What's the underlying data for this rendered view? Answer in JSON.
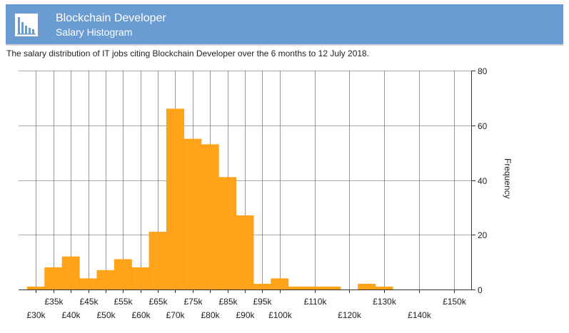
{
  "header": {
    "title": "Blockchain Developer",
    "subtitle": "Salary Histogram",
    "icon": "bar-chart-icon"
  },
  "description": "The salary distribution of IT jobs citing Blockchain Developer over the 6 months to 12 July 2018.",
  "colors": {
    "header_bg": "#6a9bd1",
    "bar": "#ffa31a",
    "bar_edge": "#ff9900",
    "grid": "#444444"
  },
  "chart_data": {
    "type": "bar",
    "title": "",
    "xlabel": "",
    "ylabel": "Frequency",
    "ylim": [
      0,
      80
    ],
    "y_ticks": [
      0,
      20,
      40,
      60,
      80
    ],
    "x_range": [
      25000,
      155000
    ],
    "x_tick_labels": [
      {
        "value": 30000,
        "label": "£30k"
      },
      {
        "value": 35000,
        "label": "£35k"
      },
      {
        "value": 40000,
        "label": "£40k"
      },
      {
        "value": 45000,
        "label": "£45k"
      },
      {
        "value": 50000,
        "label": "£50k"
      },
      {
        "value": 55000,
        "label": "£55k"
      },
      {
        "value": 60000,
        "label": "£60k"
      },
      {
        "value": 65000,
        "label": "£65k"
      },
      {
        "value": 70000,
        "label": "£70k"
      },
      {
        "value": 75000,
        "label": "£75k"
      },
      {
        "value": 80000,
        "label": "£80k"
      },
      {
        "value": 85000,
        "label": "£85k"
      },
      {
        "value": 90000,
        "label": "£90k"
      },
      {
        "value": 95000,
        "label": "£95k"
      },
      {
        "value": 100000,
        "label": "£100k"
      },
      {
        "value": 110000,
        "label": "£110k"
      },
      {
        "value": 120000,
        "label": "£120k"
      },
      {
        "value": 130000,
        "label": "£130k"
      },
      {
        "value": 140000,
        "label": "£140k"
      },
      {
        "value": 150000,
        "label": "£150k"
      }
    ],
    "bins": [
      {
        "from": 27500,
        "to": 32500,
        "value": 1
      },
      {
        "from": 32500,
        "to": 37500,
        "value": 8
      },
      {
        "from": 37500,
        "to": 42500,
        "value": 12
      },
      {
        "from": 42500,
        "to": 47500,
        "value": 4
      },
      {
        "from": 47500,
        "to": 52500,
        "value": 7
      },
      {
        "from": 52500,
        "to": 57500,
        "value": 11
      },
      {
        "from": 57500,
        "to": 62500,
        "value": 8
      },
      {
        "from": 62500,
        "to": 67500,
        "value": 21
      },
      {
        "from": 67500,
        "to": 72500,
        "value": 66
      },
      {
        "from": 72500,
        "to": 77500,
        "value": 55
      },
      {
        "from": 77500,
        "to": 82500,
        "value": 53
      },
      {
        "from": 82500,
        "to": 87500,
        "value": 41
      },
      {
        "from": 87500,
        "to": 92500,
        "value": 27
      },
      {
        "from": 92500,
        "to": 97500,
        "value": 2
      },
      {
        "from": 97500,
        "to": 102500,
        "value": 4
      },
      {
        "from": 102500,
        "to": 107500,
        "value": 1
      },
      {
        "from": 107500,
        "to": 112500,
        "value": 1
      },
      {
        "from": 112500,
        "to": 117500,
        "value": 1
      },
      {
        "from": 117500,
        "to": 122500,
        "value": 0
      },
      {
        "from": 122500,
        "to": 127500,
        "value": 2
      },
      {
        "from": 127500,
        "to": 132500,
        "value": 1
      },
      {
        "from": 132500,
        "to": 137500,
        "value": 0
      },
      {
        "from": 137500,
        "to": 142500,
        "value": 0
      },
      {
        "from": 142500,
        "to": 147500,
        "value": 0
      },
      {
        "from": 147500,
        "to": 152500,
        "value": 0
      }
    ],
    "grid": true,
    "y_axis_position": "right"
  }
}
